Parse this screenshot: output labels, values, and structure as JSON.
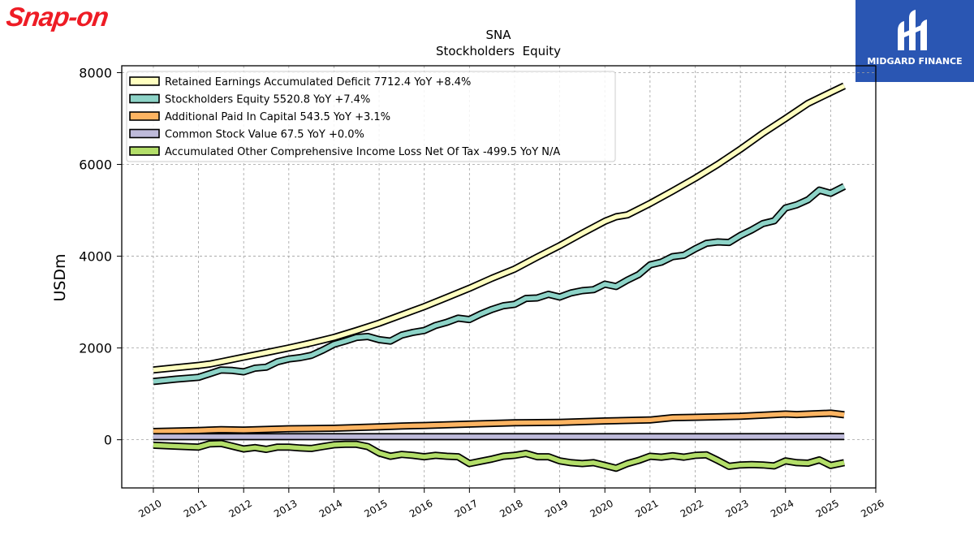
{
  "branding": {
    "company_logo_text": "Snap-on",
    "partner_logo_text": "MIDGARD FINANCE"
  },
  "chart_data": {
    "type": "line",
    "title": "SNA",
    "subtitle": "Stockholders  Equity",
    "ylabel": "USDm",
    "xlim": [
      2009.3,
      2026.0
    ],
    "ylim": [
      -1050,
      8150
    ],
    "xticks": [
      "2010",
      "2011",
      "2012",
      "2013",
      "2014",
      "2015",
      "2016",
      "2017",
      "2018",
      "2019",
      "2020",
      "2021",
      "2022",
      "2023",
      "2024",
      "2025",
      "2026"
    ],
    "yticks": [
      0,
      2000,
      4000,
      6000,
      8000
    ],
    "ytick_labels": [
      "0",
      "2000",
      "4000",
      "6000",
      "8000"
    ],
    "grid": true,
    "legend_position": "top-left",
    "series": [
      {
        "name": "Retained Earnings Accumulated Deficit",
        "legend_label": "Retained Earnings Accumulated Deficit  7712.4 YoY +8.4%",
        "color": "#ffffc0",
        "points": [
          [
            2010.0,
            1520
          ],
          [
            2010.5,
            1570
          ],
          [
            2011.0,
            1620
          ],
          [
            2011.25,
            1650
          ],
          [
            2011.5,
            1700
          ],
          [
            2012.0,
            1800
          ],
          [
            2012.5,
            1900
          ],
          [
            2013.0,
            2000
          ],
          [
            2013.5,
            2110
          ],
          [
            2014.0,
            2230
          ],
          [
            2014.5,
            2380
          ],
          [
            2015.0,
            2540
          ],
          [
            2015.5,
            2720
          ],
          [
            2016.0,
            2900
          ],
          [
            2016.5,
            3100
          ],
          [
            2017.0,
            3300
          ],
          [
            2017.5,
            3520
          ],
          [
            2018.0,
            3720
          ],
          [
            2018.5,
            3980
          ],
          [
            2019.0,
            4230
          ],
          [
            2019.5,
            4500
          ],
          [
            2020.0,
            4760
          ],
          [
            2020.25,
            4860
          ],
          [
            2020.5,
            4900
          ],
          [
            2021.0,
            5150
          ],
          [
            2021.5,
            5420
          ],
          [
            2022.0,
            5700
          ],
          [
            2022.5,
            6000
          ],
          [
            2023.0,
            6330
          ],
          [
            2023.5,
            6680
          ],
          [
            2024.0,
            7000
          ],
          [
            2024.5,
            7330
          ],
          [
            2025.0,
            7570
          ],
          [
            2025.3,
            7712
          ]
        ]
      },
      {
        "name": "Stockholders Equity",
        "legend_label": "Stockholders Equity  5520.8 YoY +7.4%",
        "color": "#8dd3c7",
        "points": [
          [
            2010.0,
            1270
          ],
          [
            2010.5,
            1320
          ],
          [
            2011.0,
            1360
          ],
          [
            2011.5,
            1520
          ],
          [
            2011.75,
            1510
          ],
          [
            2012.0,
            1480
          ],
          [
            2012.25,
            1560
          ],
          [
            2012.5,
            1580
          ],
          [
            2012.75,
            1700
          ],
          [
            2013.0,
            1760
          ],
          [
            2013.25,
            1790
          ],
          [
            2013.5,
            1840
          ],
          [
            2013.75,
            1950
          ],
          [
            2014.0,
            2080
          ],
          [
            2014.25,
            2150
          ],
          [
            2014.5,
            2230
          ],
          [
            2014.75,
            2250
          ],
          [
            2015.0,
            2180
          ],
          [
            2015.25,
            2150
          ],
          [
            2015.5,
            2280
          ],
          [
            2015.75,
            2340
          ],
          [
            2016.0,
            2380
          ],
          [
            2016.25,
            2490
          ],
          [
            2016.5,
            2560
          ],
          [
            2016.75,
            2650
          ],
          [
            2017.0,
            2620
          ],
          [
            2017.25,
            2740
          ],
          [
            2017.5,
            2840
          ],
          [
            2017.75,
            2920
          ],
          [
            2018.0,
            2950
          ],
          [
            2018.25,
            3080
          ],
          [
            2018.5,
            3090
          ],
          [
            2018.75,
            3170
          ],
          [
            2019.0,
            3110
          ],
          [
            2019.25,
            3200
          ],
          [
            2019.5,
            3250
          ],
          [
            2019.75,
            3270
          ],
          [
            2020.0,
            3390
          ],
          [
            2020.25,
            3340
          ],
          [
            2020.5,
            3480
          ],
          [
            2020.75,
            3600
          ],
          [
            2021.0,
            3810
          ],
          [
            2021.25,
            3870
          ],
          [
            2021.5,
            3990
          ],
          [
            2021.75,
            4020
          ],
          [
            2022.0,
            4160
          ],
          [
            2022.25,
            4280
          ],
          [
            2022.5,
            4310
          ],
          [
            2022.75,
            4300
          ],
          [
            2023.0,
            4450
          ],
          [
            2023.25,
            4570
          ],
          [
            2023.5,
            4710
          ],
          [
            2023.75,
            4770
          ],
          [
            2024.0,
            5050
          ],
          [
            2024.25,
            5120
          ],
          [
            2024.5,
            5230
          ],
          [
            2024.75,
            5440
          ],
          [
            2025.0,
            5370
          ],
          [
            2025.3,
            5521
          ]
        ]
      },
      {
        "name": "Additional Paid In Capital",
        "legend_label": "Additional Paid In Capital  543.5 YoY +3.1%",
        "color": "#fdb462",
        "points": [
          [
            2010.0,
            180
          ],
          [
            2011.0,
            200
          ],
          [
            2011.5,
            220
          ],
          [
            2012.0,
            210
          ],
          [
            2013.0,
            240
          ],
          [
            2014.0,
            250
          ],
          [
            2015.0,
            280
          ],
          [
            2015.5,
            300
          ],
          [
            2016.0,
            310
          ],
          [
            2017.0,
            340
          ],
          [
            2018.0,
            370
          ],
          [
            2019.0,
            380
          ],
          [
            2020.0,
            410
          ],
          [
            2021.0,
            430
          ],
          [
            2021.5,
            480
          ],
          [
            2022.0,
            490
          ],
          [
            2023.0,
            510
          ],
          [
            2024.0,
            560
          ],
          [
            2024.25,
            550
          ],
          [
            2025.0,
            580
          ],
          [
            2025.3,
            544
          ]
        ]
      },
      {
        "name": "Common Stock Value",
        "legend_label": "Common Stock Value  67.5 YoY +0.0%",
        "color": "#bebada",
        "points": [
          [
            2010.0,
            67
          ],
          [
            2025.3,
            67.5
          ]
        ]
      },
      {
        "name": "Accumulated Other Comprehensive Income Loss Net Of Tax",
        "legend_label": "Accumulated Other Comprehensive Income Loss Net Of Tax  -499.5 YoY N/A",
        "color": "#b3de69",
        "points": [
          [
            2010.0,
            -120
          ],
          [
            2010.5,
            -140
          ],
          [
            2011.0,
            -160
          ],
          [
            2011.25,
            -90
          ],
          [
            2011.5,
            -80
          ],
          [
            2011.75,
            -140
          ],
          [
            2012.0,
            -200
          ],
          [
            2012.25,
            -170
          ],
          [
            2012.5,
            -210
          ],
          [
            2012.75,
            -160
          ],
          [
            2013.0,
            -160
          ],
          [
            2013.25,
            -180
          ],
          [
            2013.5,
            -190
          ],
          [
            2013.75,
            -150
          ],
          [
            2014.0,
            -110
          ],
          [
            2014.25,
            -100
          ],
          [
            2014.5,
            -100
          ],
          [
            2014.75,
            -150
          ],
          [
            2015.0,
            -290
          ],
          [
            2015.25,
            -360
          ],
          [
            2015.5,
            -320
          ],
          [
            2015.75,
            -340
          ],
          [
            2016.0,
            -370
          ],
          [
            2016.25,
            -340
          ],
          [
            2016.5,
            -360
          ],
          [
            2016.75,
            -370
          ],
          [
            2017.0,
            -520
          ],
          [
            2017.25,
            -470
          ],
          [
            2017.5,
            -420
          ],
          [
            2017.75,
            -360
          ],
          [
            2018.0,
            -340
          ],
          [
            2018.25,
            -300
          ],
          [
            2018.5,
            -370
          ],
          [
            2018.75,
            -370
          ],
          [
            2019.0,
            -460
          ],
          [
            2019.25,
            -500
          ],
          [
            2019.5,
            -520
          ],
          [
            2019.75,
            -500
          ],
          [
            2020.0,
            -560
          ],
          [
            2020.25,
            -620
          ],
          [
            2020.5,
            -520
          ],
          [
            2020.75,
            -450
          ],
          [
            2021.0,
            -360
          ],
          [
            2021.25,
            -380
          ],
          [
            2021.5,
            -350
          ],
          [
            2021.75,
            -380
          ],
          [
            2022.0,
            -340
          ],
          [
            2022.25,
            -330
          ],
          [
            2022.5,
            -450
          ],
          [
            2022.75,
            -580
          ],
          [
            2023.0,
            -550
          ],
          [
            2023.25,
            -540
          ],
          [
            2023.5,
            -550
          ],
          [
            2023.75,
            -570
          ],
          [
            2024.0,
            -460
          ],
          [
            2024.25,
            -500
          ],
          [
            2024.5,
            -510
          ],
          [
            2024.75,
            -440
          ],
          [
            2025.0,
            -560
          ],
          [
            2025.3,
            -500
          ]
        ]
      }
    ]
  }
}
